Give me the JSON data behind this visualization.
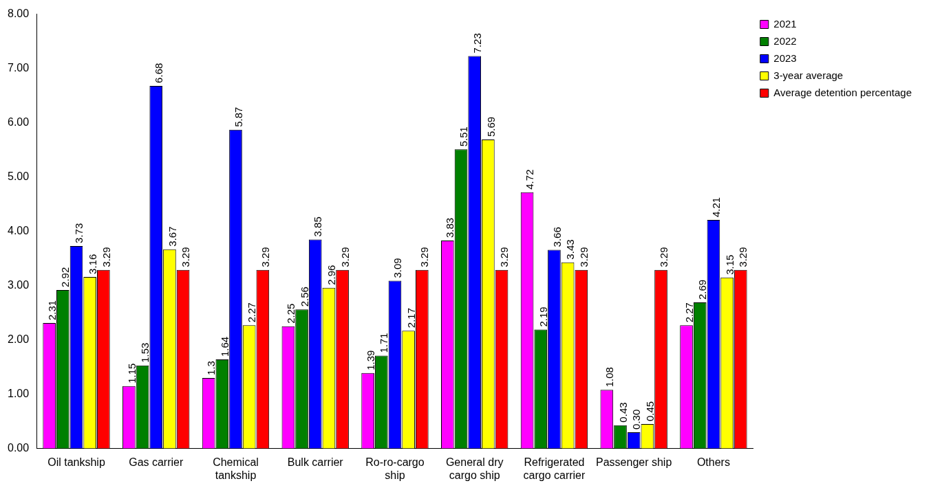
{
  "chart_data": {
    "type": "bar",
    "categories": [
      "Oil tankship",
      "Gas carrier",
      "Chemical tankship",
      "Bulk carrier",
      "Ro-ro-cargo ship",
      "General dry cargo ship",
      "Refrigerated cargo carrier",
      "Passenger ship",
      "Others"
    ],
    "series": [
      {
        "name": "2021",
        "color": "#ff00ff",
        "values": [
          2.31,
          1.15,
          1.3,
          2.25,
          1.39,
          3.83,
          4.72,
          1.08,
          2.27
        ],
        "value_labels": [
          "2.31",
          "1.15",
          "1.3",
          "2.25",
          "1.39",
          "3.83",
          "4.72",
          "1.08",
          "2.27"
        ]
      },
      {
        "name": "2022",
        "color": "#008000",
        "values": [
          2.92,
          1.53,
          1.64,
          2.56,
          1.71,
          5.51,
          2.19,
          0.43,
          2.69
        ],
        "value_labels": [
          "2.92",
          "1.53",
          "1.64",
          "2.56",
          "1.71",
          "5.51",
          "2.19",
          "0.43",
          "2.69"
        ]
      },
      {
        "name": "2023",
        "color": "#0000ff",
        "values": [
          3.73,
          6.68,
          5.87,
          3.85,
          3.09,
          7.23,
          3.66,
          0.3,
          4.21
        ],
        "value_labels": [
          "3.73",
          "6.68",
          "5.87",
          "3.85",
          "3.09",
          "7.23",
          "3.66",
          "0.30",
          "4.21"
        ]
      },
      {
        "name": "3-year average",
        "color": "#ffff00",
        "values": [
          3.16,
          3.67,
          2.27,
          2.96,
          2.17,
          5.69,
          3.43,
          0.45,
          3.15
        ],
        "value_labels": [
          "3.16",
          "3.67",
          "2.27",
          "2.96",
          "2.17",
          "5.69",
          "3.43",
          "0.45",
          "3.15"
        ]
      },
      {
        "name": "Average detention percentage",
        "color": "#ff0000",
        "values": [
          3.29,
          3.29,
          3.29,
          3.29,
          3.29,
          3.29,
          3.29,
          3.29,
          3.29
        ],
        "value_labels": [
          "3.29",
          "3.29",
          "3.29",
          "3.29",
          "3.29",
          "3.29",
          "3.29",
          "3.29",
          "3.29"
        ]
      }
    ],
    "ylim": [
      0,
      8
    ],
    "yticks": [
      {
        "value": 0,
        "label": "0.00"
      },
      {
        "value": 1,
        "label": "1.00"
      },
      {
        "value": 2,
        "label": "2.00"
      },
      {
        "value": 3,
        "label": "3.00"
      },
      {
        "value": 4,
        "label": "4.00"
      },
      {
        "value": 5,
        "label": "5.00"
      },
      {
        "value": 6,
        "label": "6.00"
      },
      {
        "value": 7,
        "label": "7.00"
      },
      {
        "value": 8,
        "label": "8.00"
      }
    ],
    "grid": false,
    "legend": "top right"
  }
}
